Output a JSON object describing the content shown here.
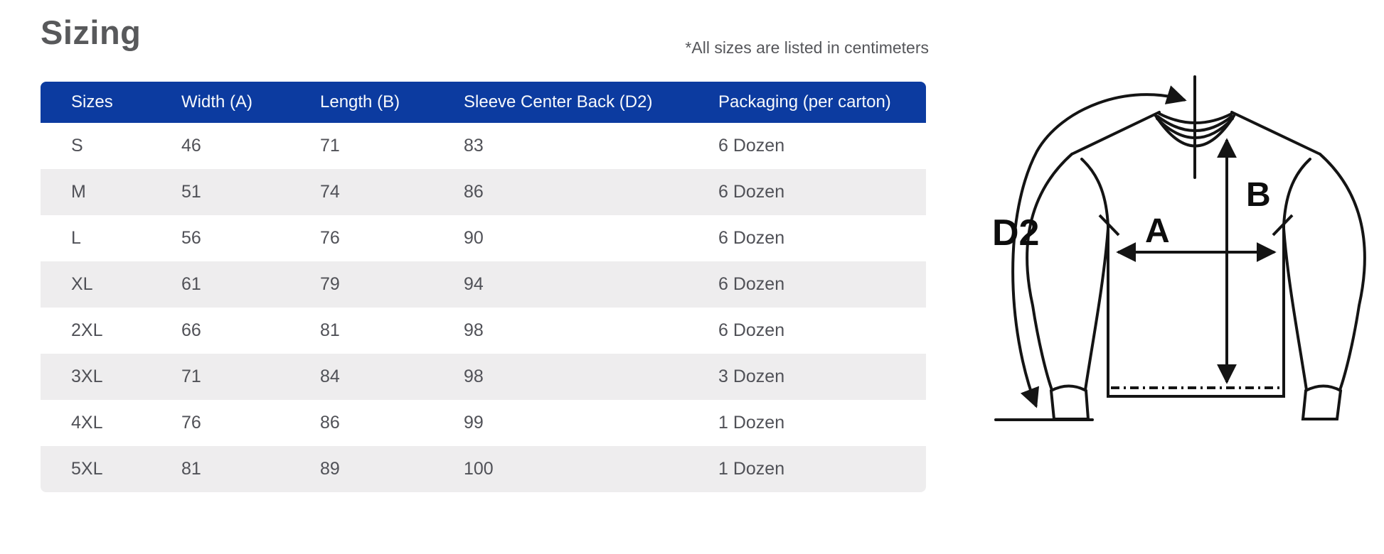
{
  "page": {
    "title": "Sizing",
    "note": "*All sizes are listed in centimeters"
  },
  "table": {
    "columns": [
      "Sizes",
      "Width (A)",
      "Length (B)",
      "Sleeve Center Back (D2)",
      "Packaging (per carton)"
    ],
    "rows": [
      {
        "size": "S",
        "width": "46",
        "length": "71",
        "sleeve": "83",
        "packaging": "6 Dozen"
      },
      {
        "size": "M",
        "width": "51",
        "length": "74",
        "sleeve": "86",
        "packaging": "6 Dozen"
      },
      {
        "size": "L",
        "width": "56",
        "length": "76",
        "sleeve": "90",
        "packaging": "6 Dozen"
      },
      {
        "size": "XL",
        "width": "61",
        "length": "79",
        "sleeve": "94",
        "packaging": "6 Dozen"
      },
      {
        "size": "2XL",
        "width": "66",
        "length": "81",
        "sleeve": "98",
        "packaging": "6 Dozen"
      },
      {
        "size": "3XL",
        "width": "71",
        "length": "84",
        "sleeve": "98",
        "packaging": "3 Dozen"
      },
      {
        "size": "4XL",
        "width": "76",
        "length": "86",
        "sleeve": "99",
        "packaging": "1 Dozen"
      },
      {
        "size": "5XL",
        "width": "81",
        "length": "89",
        "sleeve": "100",
        "packaging": "1 Dozen"
      }
    ],
    "units": "centimeters"
  },
  "diagram": {
    "labels": {
      "sleeve_center_back": "D2",
      "width": "A",
      "length": "B"
    }
  },
  "colors": {
    "header_bg": "#0C3BA0",
    "header_text": "#F7F9FC",
    "row_alt_bg": "#EEEDEE",
    "cell_text": "#505157",
    "title_text": "#58595B",
    "note_text": "#55565A",
    "diagram_line": "#141414"
  }
}
